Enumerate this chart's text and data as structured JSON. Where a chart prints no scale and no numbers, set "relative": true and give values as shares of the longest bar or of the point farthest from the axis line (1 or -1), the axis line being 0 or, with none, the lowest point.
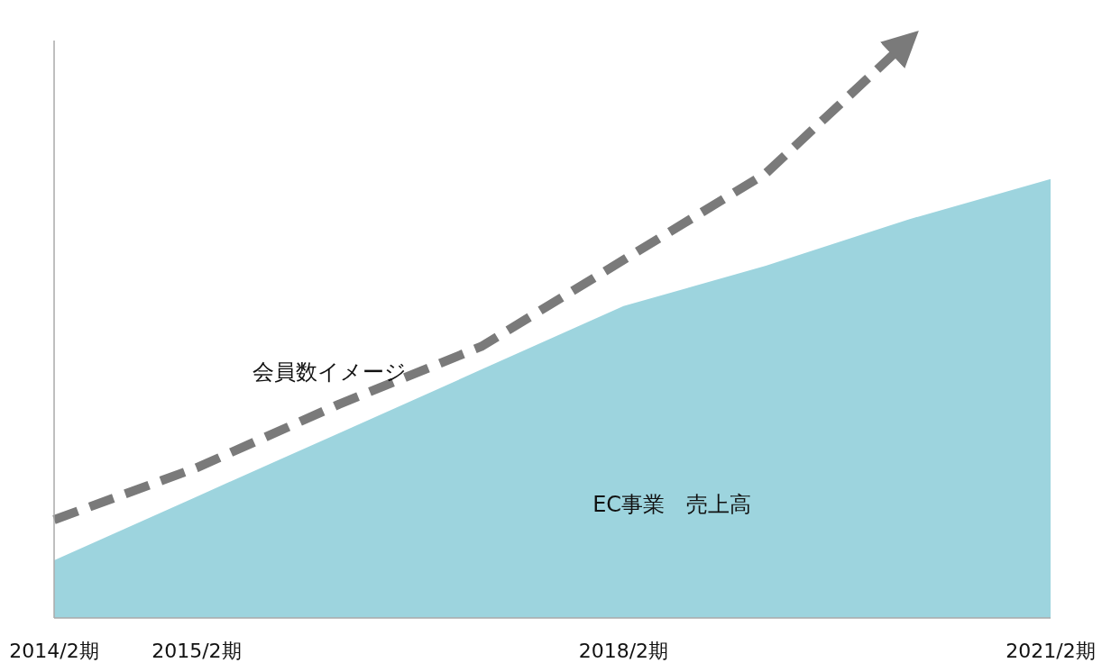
{
  "chart_data": {
    "type": "area",
    "relative": true,
    "categories": [
      "2014/2期",
      "2015/2期",
      null,
      null,
      "2018/2期",
      null,
      null,
      "2021/2期"
    ],
    "series": [
      {
        "name": "EC事業　売上高",
        "color": "#9dd4de",
        "values": [
          0.1,
          0.21,
          0.32,
          0.43,
          0.54,
          0.61,
          0.69,
          0.76
        ]
      },
      {
        "name": "会員数イメージ",
        "type": "line",
        "line_style": "dashed",
        "color": "#7a7a7a",
        "values": [
          0.17,
          0.26,
          0.37,
          0.47,
          0.62,
          0.77,
          1,
          null
        ]
      }
    ],
    "legend": false,
    "grid": false
  }
}
